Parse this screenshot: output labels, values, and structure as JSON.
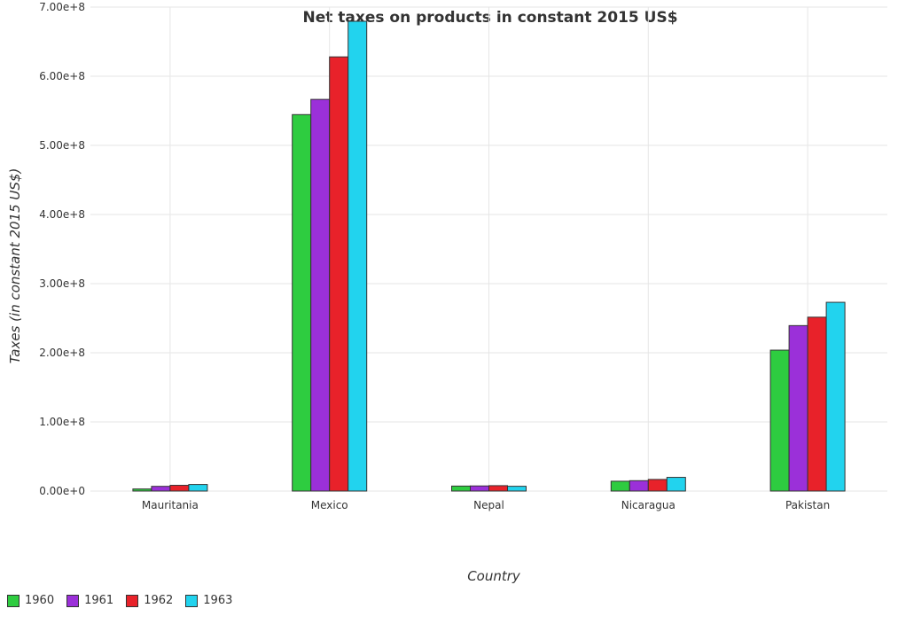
{
  "chart_data": {
    "type": "bar",
    "title": "Net taxes on products in constant 2015 US$",
    "xlabel": "Country",
    "ylabel": "Taxes (in constant 2015 US$)",
    "categories": [
      "Mauritania",
      "Mexico",
      "Nepal",
      "Nicaragua",
      "Pakistan"
    ],
    "series": [
      {
        "name": "1960",
        "color": "#2ecc40",
        "values": [
          3000000,
          544500000,
          7200000,
          14200000,
          203800000
        ]
      },
      {
        "name": "1961",
        "color": "#9b30d9",
        "values": [
          6800000,
          566500000,
          7400000,
          15000000,
          239300000
        ]
      },
      {
        "name": "1962",
        "color": "#e8222a",
        "values": [
          8300000,
          628000000,
          7800000,
          16800000,
          251500000
        ]
      },
      {
        "name": "1963",
        "color": "#22d3ee",
        "values": [
          9500000,
          679500000,
          6900000,
          19800000,
          273000000
        ]
      }
    ],
    "ylim": [
      0,
      700000000
    ],
    "yticks": [
      0,
      100000000,
      200000000,
      300000000,
      400000000,
      500000000,
      600000000,
      700000000
    ],
    "ytick_labels": [
      "0.00e+0",
      "1.00e+8",
      "2.00e+8",
      "3.00e+8",
      "4.00e+8",
      "5.00e+8",
      "6.00e+8",
      "7.00e+8"
    ],
    "grid": true,
    "legend_position": "bottom-left"
  }
}
